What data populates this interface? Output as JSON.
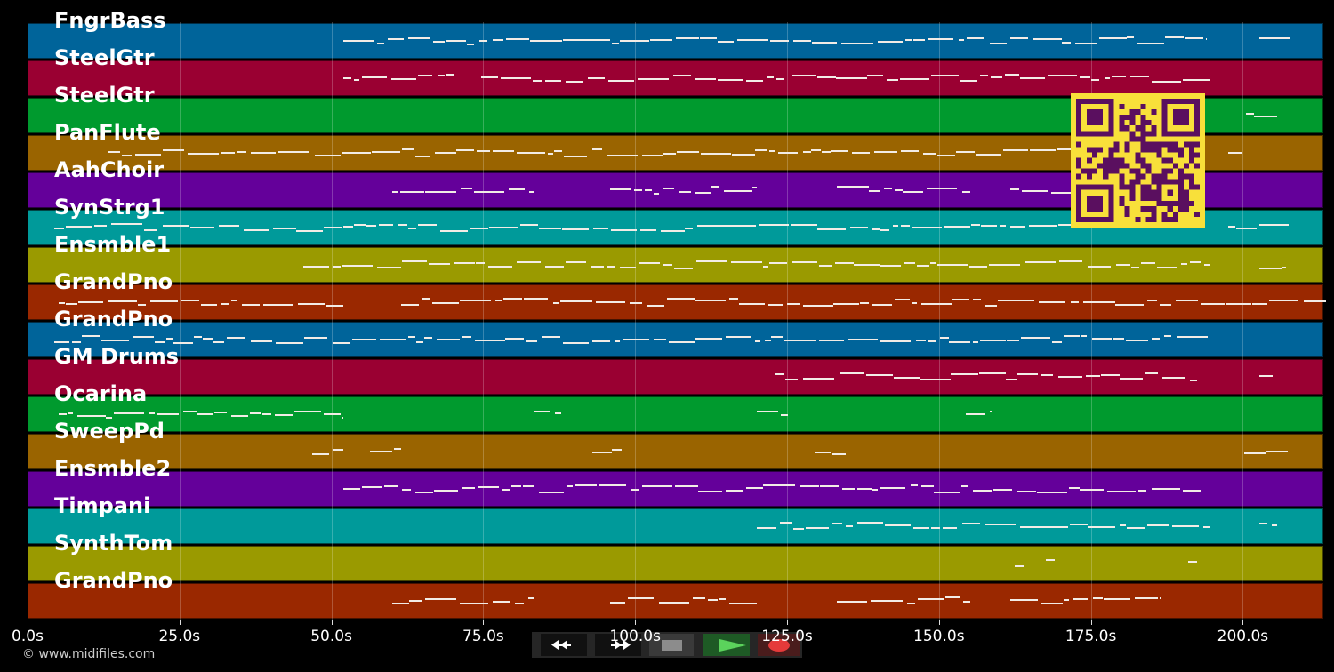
{
  "tracks": [
    {
      "label": "FngrBass",
      "color": "#00649a"
    },
    {
      "label": "SteelGtr",
      "color": "#9a0032"
    },
    {
      "label": "SteelGtr",
      "color": "#009a2e"
    },
    {
      "label": "PanFlute",
      "color": "#9a6400"
    },
    {
      "label": "AahChoir",
      "color": "#64009a"
    },
    {
      "label": "SynStrg1",
      "color": "#009a9a"
    },
    {
      "label": "Ensmble1",
      "color": "#9a9a00"
    },
    {
      "label": "GrandPno",
      "color": "#9a2800"
    },
    {
      "label": "GrandPno",
      "color": "#00649a"
    },
    {
      "label": "GM Drums",
      "color": "#9a0032"
    },
    {
      "label": "Ocarina",
      "color": "#009a2e"
    },
    {
      "label": "SweepPd",
      "color": "#9a6400"
    },
    {
      "label": "Ensmble2",
      "color": "#64009a"
    },
    {
      "label": "Timpani",
      "color": "#009a9a"
    },
    {
      "label": "SynthTom",
      "color": "#9a9a00"
    },
    {
      "label": "GrandPno",
      "color": "#9a2800"
    }
  ],
  "time_axis": {
    "ticks": [
      "0.0s",
      "25.0s",
      "50.0s",
      "75.0s",
      "100.0s",
      "125.0s",
      "150.0s",
      "175.0s",
      "200.0s"
    ],
    "seconds_per_tick": 25,
    "pixels_per_tick": 341.5
  },
  "copyright": "© www.midifiles.com",
  "transport": {
    "rewind": "rewind-button",
    "fast_forward": "fast-forward-button",
    "stop": "stop-button",
    "play": "play-button",
    "record": "record-button"
  },
  "qr_code": {
    "fg": "#5a0f5f",
    "bg": "#f8e03a"
  }
}
